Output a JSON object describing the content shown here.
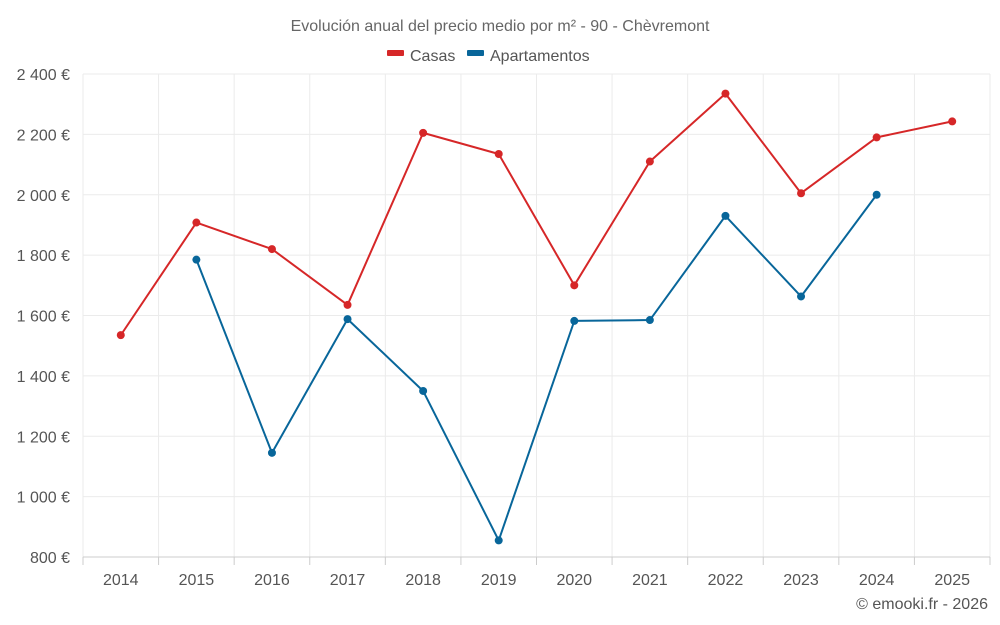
{
  "chart_data": {
    "type": "line",
    "title": "Evolución anual del precio medio por m² - 90 - Chèvremont",
    "categories": [
      "2014",
      "2015",
      "2016",
      "2017",
      "2018",
      "2019",
      "2020",
      "2021",
      "2022",
      "2023",
      "2024",
      "2025"
    ],
    "series": [
      {
        "name": "Casas",
        "color": "#d62728",
        "values": [
          1535,
          1908,
          1820,
          1635,
          2205,
          2135,
          1700,
          2110,
          2335,
          2005,
          2190,
          2243
        ]
      },
      {
        "name": "Apartamentos",
        "color": "#08669a",
        "values": [
          null,
          1785,
          1145,
          1588,
          1350,
          855,
          1582,
          1585,
          1930,
          1663,
          2000,
          null
        ]
      }
    ],
    "ylim": [
      800,
      2400
    ],
    "yticks": [
      800,
      1000,
      1200,
      1400,
      1600,
      1800,
      2000,
      2200,
      2400
    ],
    "ytick_labels": [
      "800 €",
      "1 000 €",
      "1 200 €",
      "1 400 €",
      "1 600 €",
      "1 800 €",
      "2 000 €",
      "2 200 €",
      "2 400 €"
    ],
    "xlabel": "",
    "ylabel": "",
    "grid": true,
    "legend_position": "top-center",
    "credit": "© emooki.fr - 2026"
  }
}
